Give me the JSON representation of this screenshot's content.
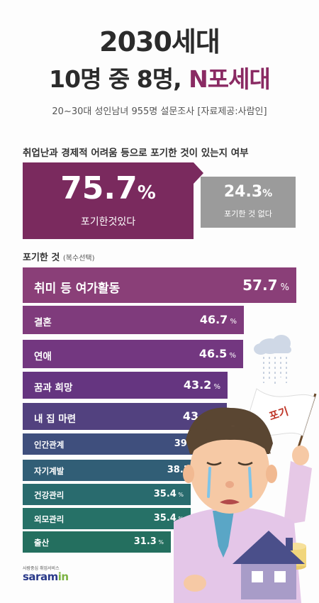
{
  "title_line1": "2030세대",
  "title_line2_prefix": "10명 중 8명, ",
  "title_line2_highlight": "N포세대",
  "subtitle": "20~30대 성인남녀 955명 설문조사 [자료제공:사람인]",
  "question": "취업난과 경제적 어려움 등으로 포기한 것이 있는지 여부",
  "gave_up": {
    "value": "75.7",
    "unit": "%",
    "label": "포기한것있다"
  },
  "not_gave_up": {
    "value": "24.3",
    "unit": "%",
    "label": "포기한 것 없다"
  },
  "section_title": "포기한 것",
  "section_note": "(복수선택)",
  "flag_text": "포기",
  "logo_tagline": "사람중심 취업서비스",
  "logo_main": "saram",
  "logo_suffix": "in",
  "chart_data": {
    "type": "bar",
    "orientation": "horizontal",
    "unit": "%",
    "categories": [
      "취미 등 여가활동",
      "결혼",
      "연애",
      "꿈과 희망",
      "내 집 마련",
      "인간관계",
      "자기계발",
      "건강관리",
      "외모관리",
      "출산"
    ],
    "values": [
      57.7,
      46.7,
      46.5,
      43.2,
      43.0,
      39.8,
      38.3,
      35.4,
      35.4,
      31.3
    ],
    "value_labels": [
      "57.7",
      "46.7",
      "46.5",
      "43.2",
      "43.0",
      "39.8",
      "38.3",
      "35.4",
      "35.4",
      "31.3"
    ],
    "colors": [
      "#8a3f78",
      "#7f3b7c",
      "#733780",
      "#653580",
      "#52417f",
      "#3f4f7d",
      "#315e76",
      "#296b6e",
      "#267167",
      "#246f5f"
    ]
  }
}
